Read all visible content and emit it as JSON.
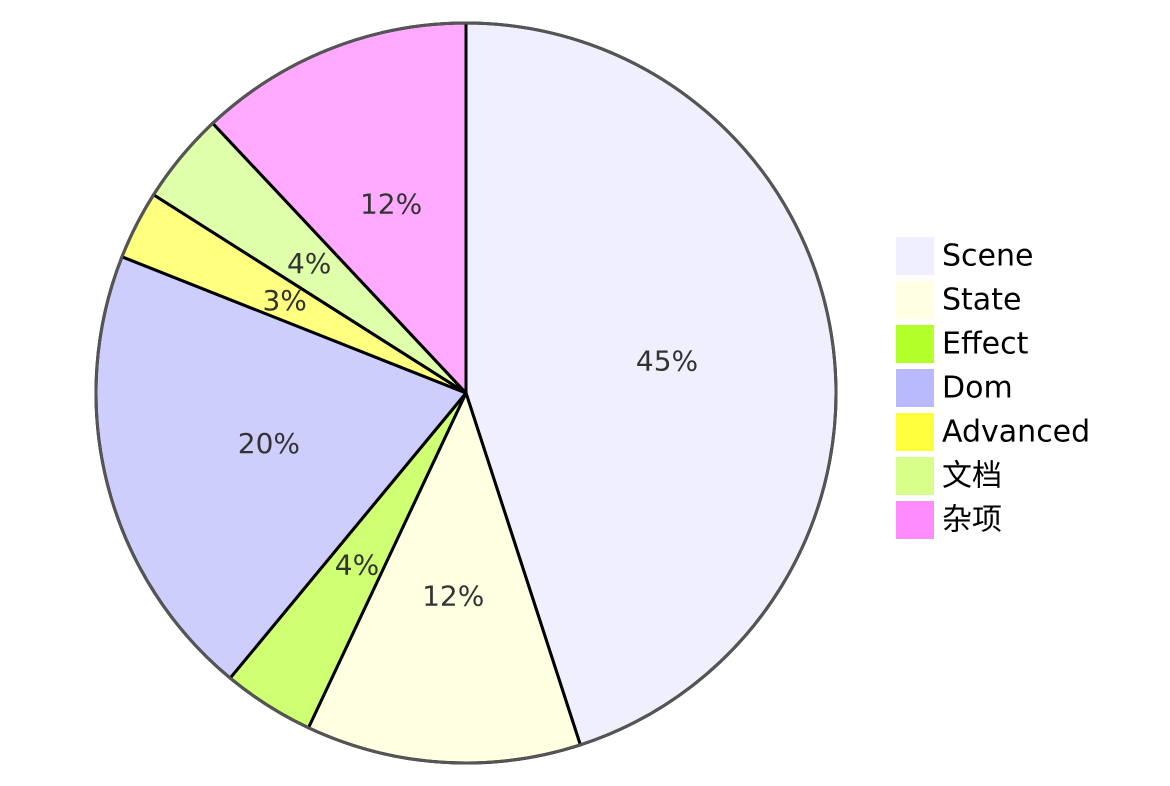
{
  "chart_data": {
    "type": "pie",
    "title": "",
    "slices": [
      {
        "name": "Scene",
        "value": 45,
        "label": "45%",
        "color": "#EFEFFD",
        "legend_color": "#EEEEFD"
      },
      {
        "name": "State",
        "value": 12,
        "label": "12%",
        "color": "#FFFFE2",
        "legend_color": "#FFFFE3"
      },
      {
        "name": "Effect",
        "value": 4,
        "label": "4%",
        "color": "#CFFF72",
        "legend_color": "#B3FF2A"
      },
      {
        "name": "Dom",
        "value": 20,
        "label": "20%",
        "color": "#CECEFD",
        "legend_color": "#B9B9FD"
      },
      {
        "name": "Advanced",
        "value": 3,
        "label": "3%",
        "color": "#FFFF80",
        "legend_color": "#FFFF3C"
      },
      {
        "name": "文档",
        "value": 4,
        "label": "4%",
        "color": "#E0FFAA",
        "legend_color": "#D7FF8A"
      },
      {
        "name": "杂项",
        "value": 12,
        "label": "12%",
        "color": "#FFAAFF",
        "legend_color": "#FF8CFF"
      }
    ],
    "legend_position": "right",
    "start_angle": "top",
    "direction": "clockwise"
  }
}
